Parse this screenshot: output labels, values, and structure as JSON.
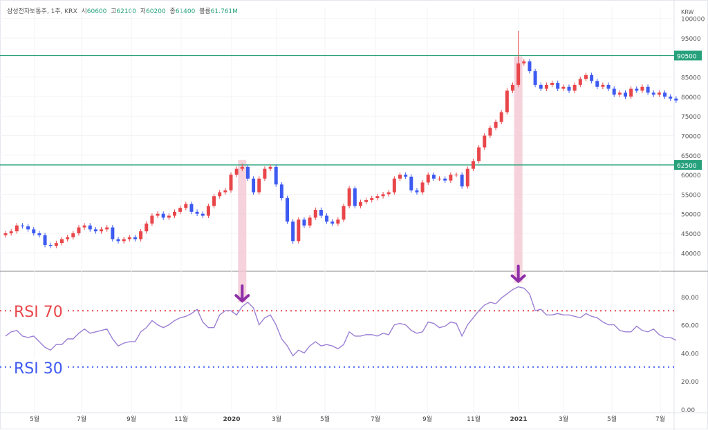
{
  "header": {
    "symbol": "삼성전자보통주, 1주, KRX",
    "open_label": "시",
    "open": "60600",
    "high_label": "고",
    "high": "62100",
    "low_label": "저",
    "low": "60200",
    "close_label": "종",
    "close": "61400",
    "volume_label": "볼륨",
    "volume": "61.761M"
  },
  "colors": {
    "up": "#e8464a",
    "down": "#3d5af1",
    "level": "#26a17b",
    "rsi": "#9b7fd4",
    "rsi70": "#e8464a",
    "rsi30": "#3d5af1",
    "highlight": "#f3c7d3",
    "arrow": "#8e2fa8"
  },
  "chart_data": [
    {
      "type": "candlestick",
      "interval": "1주",
      "currency": "KRW",
      "ylim": [
        35000,
        100000
      ],
      "yticks": [
        "100000",
        "95000",
        "85000",
        "80000",
        "75000",
        "70000",
        "65000",
        "60000",
        "55000",
        "50000",
        "45000",
        "40000"
      ],
      "xticks": [
        "5월",
        "7월",
        "9월",
        "11월",
        "2020",
        "3월",
        "5월",
        "7월",
        "9월",
        "11월",
        "2021",
        "3월",
        "5월",
        "7월"
      ],
      "close": [
        45000,
        45500,
        47000,
        46800,
        46000,
        45000,
        44500,
        42000,
        41800,
        42500,
        43500,
        44000,
        45000,
        46500,
        47000,
        46000,
        45500,
        46000,
        46500,
        43500,
        43000,
        43500,
        44000,
        43500,
        45500,
        47500,
        49500,
        50000,
        49000,
        49500,
        50500,
        51500,
        52500,
        50500,
        50000,
        49500,
        52000,
        54500,
        55500,
        56000,
        60000,
        61500,
        62000,
        59000,
        55500,
        59000,
        61500,
        62000,
        57500,
        54000,
        48000,
        43000,
        48500,
        47000,
        49000,
        51000,
        49500,
        48000,
        47500,
        48500,
        52000,
        56500,
        52000,
        53000,
        53500,
        54000,
        54500,
        55000,
        55500,
        59000,
        60000,
        59500,
        56000,
        55500,
        58000,
        60000,
        59000,
        59000,
        58500,
        60000,
        60000,
        57000,
        61500,
        63500,
        67000,
        70000,
        72000,
        73500,
        76000,
        81500,
        83000,
        88500,
        89000,
        86500,
        83000,
        82000,
        83000,
        83500,
        82000,
        82500,
        81500,
        83000,
        84500,
        85500,
        84000,
        82500,
        83000,
        82000,
        80500,
        81000,
        80000,
        82000,
        81500,
        82500,
        81000,
        80500,
        81000,
        80000,
        79500,
        79000
      ],
      "levels": [
        {
          "value": 90500,
          "label": "90500"
        },
        {
          "value": 62500,
          "label": "62500"
        }
      ]
    },
    {
      "type": "line",
      "name": "RSI",
      "ylim": [
        0,
        100
      ],
      "yticks": [
        "80.00",
        "60.00",
        "40.00",
        "20.00",
        "0.00"
      ],
      "values": [
        52,
        55,
        56,
        52,
        51,
        52,
        48,
        44,
        42,
        46,
        46,
        50,
        50,
        54,
        57,
        54,
        55,
        56,
        57,
        50,
        45,
        47,
        48,
        48,
        55,
        58,
        63,
        60,
        58,
        60,
        63,
        65,
        66,
        68,
        71,
        62,
        58,
        58,
        67,
        70,
        70,
        67,
        73,
        76,
        72,
        60,
        65,
        67,
        60,
        50,
        45,
        38,
        42,
        40,
        45,
        48,
        45,
        46,
        45,
        43,
        46,
        55,
        52,
        52,
        53,
        53,
        52,
        54,
        53,
        60,
        61,
        60,
        56,
        54,
        55,
        62,
        61,
        58,
        59,
        62,
        61,
        52,
        60,
        65,
        70,
        74,
        76,
        75,
        79,
        82,
        85,
        87,
        86,
        82,
        70,
        71,
        67,
        67,
        68,
        67,
        67,
        66,
        65,
        68,
        66,
        65,
        62,
        60,
        60,
        56,
        55,
        55,
        59,
        56,
        55,
        57,
        53,
        51,
        51,
        49
      ],
      "thresholds": [
        {
          "value": 70,
          "label": "RSI 70"
        },
        {
          "value": 30,
          "label": "RSI 30"
        }
      ],
      "highlight_weeks": [
        42,
        91
      ]
    }
  ]
}
